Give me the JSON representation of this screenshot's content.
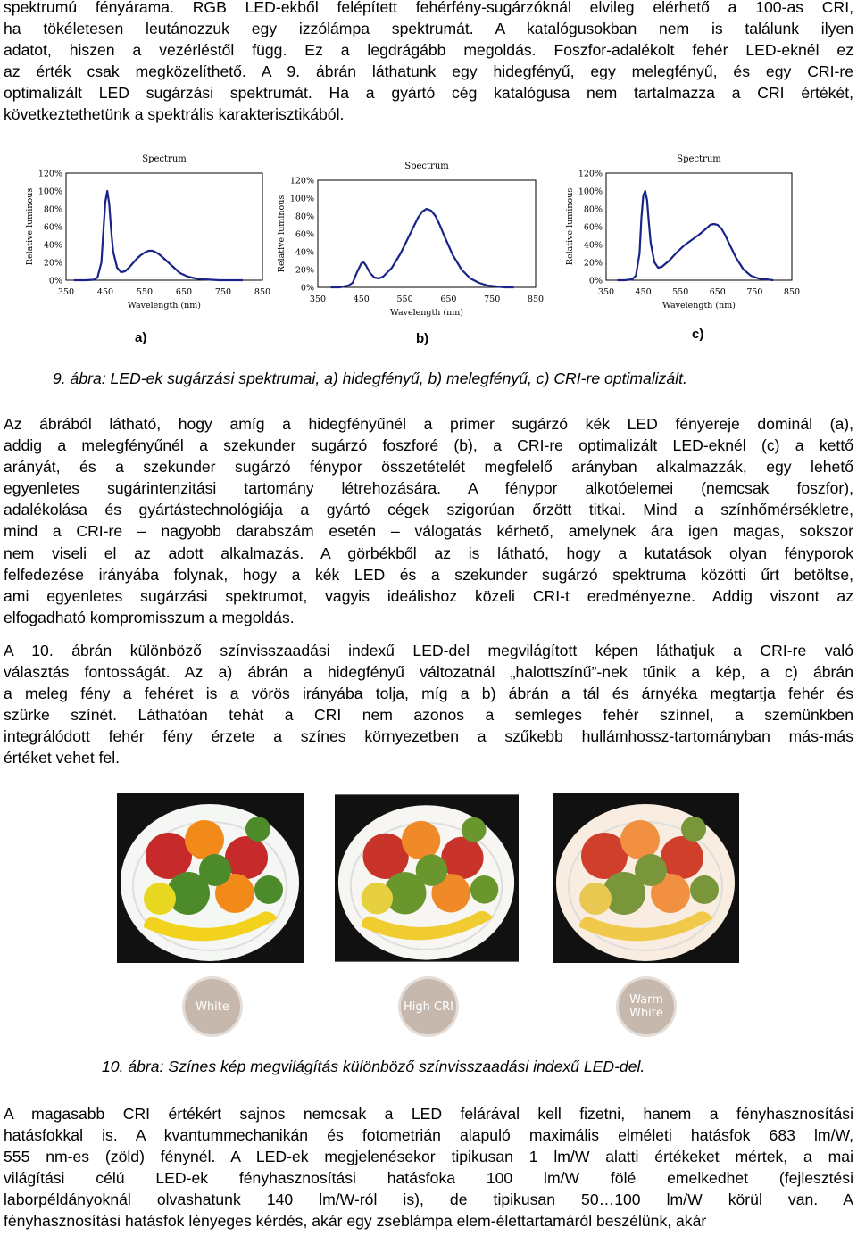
{
  "para1": [
    "spektrumú fényárama. RGB LED-ekből felépített fehérfény-sugárzóknál elvileg elérhető a 100-as CRI,",
    "ha tökéletesen leutánozzuk egy izzólámpa spektrumát. A katalógusokban nem is találunk ilyen",
    "adatot, hiszen a vezérléstől függ. Ez a legdrágább megoldás. Foszfor-adalékolt fehér LED-eknél ez",
    "az érték csak megközelíthető. A 9. ábrán láthatunk egy hidegfényű, egy melegfényű, és egy CRI-re",
    "optimalizált LED sugárzási spektrumát. Ha a gyártó cég katalógusa nem tartalmazza a CRI értékét,",
    "következtethetünk a spektrális karakterisztikából."
  ],
  "figure9": {
    "caption": "9. ábra: LED-ek sugárzási spektrumai, a) hidegfényű, b) melegfényű, c) CRI-re optimalizált.",
    "chart_data": [
      {
        "type": "line",
        "label": "a)",
        "title": "Spectrum",
        "xlabel": "Wavelength (nm)",
        "ylabel": "Relative luminous",
        "xlim": [
          350,
          850
        ],
        "ylim": [
          0,
          120
        ],
        "x_ticks": [
          "350",
          "450",
          "550",
          "650",
          "750",
          "850"
        ],
        "y_ticks": [
          "0%",
          "20%",
          "40%",
          "60%",
          "80%",
          "100%",
          "120%"
        ],
        "series": [
          {
            "x": [
              370,
              400,
              420,
              430,
              440,
              445,
              450,
              455,
              460,
              465,
              470,
              480,
              490,
              500,
              510,
              520,
              530,
              540,
              550,
              560,
              570,
              580,
              590,
              600,
              620,
              640,
              660,
              680,
              700,
              720,
              740,
              760,
              780,
              800
            ],
            "y": [
              0,
              0,
              0.5,
              3,
              20,
              55,
              88,
              100,
              85,
              55,
              32,
              14,
              9,
              10,
              14,
              19,
              24,
              28,
              31,
              33,
              33,
              31,
              28,
              24,
              16,
              8,
              4,
              2,
              1,
              0.5,
              0,
              0,
              0,
              0
            ]
          }
        ]
      },
      {
        "type": "line",
        "label": "b)",
        "title": "Spectrum",
        "xlabel": "Wavelength (nm)",
        "ylabel": "Relative luminous",
        "xlim": [
          350,
          850
        ],
        "ylim": [
          0,
          120
        ],
        "x_ticks": [
          "350",
          "450",
          "550",
          "650",
          "750",
          "850"
        ],
        "y_ticks": [
          "0%",
          "20%",
          "40%",
          "60%",
          "80%",
          "100%",
          "120%"
        ],
        "series": [
          {
            "x": [
              380,
              400,
              410,
              420,
              430,
              440,
              450,
              455,
              460,
              470,
              480,
              490,
              500,
              520,
              540,
              560,
              580,
              590,
              600,
              610,
              620,
              630,
              640,
              660,
              680,
              700,
              720,
              740,
              760,
              780,
              800
            ],
            "y": [
              0,
              0,
              1,
              2,
              5,
              17,
              27,
              28,
              25,
              16,
              11,
              10,
              12,
              22,
              38,
              58,
              78,
              85,
              88,
              86,
              80,
              70,
              58,
              36,
              20,
              10,
              5,
              2,
              1,
              0,
              0
            ]
          }
        ]
      },
      {
        "type": "line",
        "label": "c)",
        "title": "Spectrum",
        "xlabel": "Wavelength (nm)",
        "ylabel": "Relative luminous",
        "xlim": [
          350,
          850
        ],
        "ylim": [
          0,
          120
        ],
        "x_ticks": [
          "350",
          "450",
          "550",
          "650",
          "750",
          "850"
        ],
        "y_ticks": [
          "0%",
          "20%",
          "40%",
          "60%",
          "80%",
          "100%",
          "120%"
        ],
        "series": [
          {
            "x": [
              380,
              400,
              420,
              430,
              440,
              445,
              450,
              455,
              460,
              465,
              470,
              480,
              490,
              500,
              520,
              540,
              560,
              580,
              600,
              620,
              630,
              640,
              650,
              660,
              670,
              680,
              700,
              720,
              740,
              760,
              780,
              800
            ],
            "y": [
              0,
              0,
              1,
              5,
              30,
              70,
              95,
              100,
              90,
              65,
              42,
              20,
              14,
              15,
              22,
              31,
              39,
              45,
              51,
              58,
              62,
              63,
              62,
              58,
              51,
              42,
              25,
              12,
              5,
              2,
              1,
              0
            ]
          }
        ]
      }
    ],
    "sublabels": [
      "a)",
      "b)",
      "c)"
    ]
  },
  "para2": [
    "Az ábrából látható, hogy amíg a hidegfényűnél a primer sugárzó kék LED fényereje dominál (a),",
    "addig a melegfényűnél a szekunder sugárzó foszforé (b), a CRI-re optimalizált LED-eknél (c) a kettő",
    "arányát, és a szekunder sugárzó fénypor összetételét megfelelő arányban alkalmazzák, egy lehető",
    "egyenletes sugárintenzitási tartomány létrehozására. A fénypor alkotóelemei (nemcsak foszfor),",
    "adalékolása és gyártástechnológiája a gyártó cégek szigorúan őrzött titkai. Mind a színhőmérsékletre,",
    "mind a CRI-re – nagyobb darabszám esetén – válogatás kérhető, amelynek ára igen magas, sokszor",
    "nem viseli el az adott alkalmazás. A görbékből az is látható, hogy a kutatások olyan fényporok",
    "felfedezése irányába folynak, hogy a kék LED és a szekunder sugárzó spektruma közötti űrt betöltse,",
    "ami egyenletes sugárzási spektrumot, vagyis ideálishoz közeli CRI-t eredményezne. Addig viszont az",
    "elfogadható kompromisszum a megoldás."
  ],
  "para3": [
    "A 10. ábrán különböző színvisszaadási indexű LED-del megvilágított képen láthatjuk a CRI-re való",
    "választás fontosságát. Az a) ábrán a hidegfényű változatnál „halottszínű”-nek tűnik a kép, a c) ábrán",
    "a meleg fény a fehéret is a vörös irányába tolja, míg a b) ábrán a tál és árnyéka megtartja fehér és",
    "szürke színét. Láthatóan tehát a CRI nem azonos a semleges fehér színnel, a szemünkben",
    "integrálódott fehér fény érzete a színes környezetben a szűkebb hullámhossz-tartományban más-más",
    "értéket vehet fel."
  ],
  "figure10": {
    "caption": "10. ábra: Színes kép megvilágítás különböző színvisszaadási indexű LED-del.",
    "photos": [
      {
        "badge_lines": [
          "White"
        ],
        "bowl": "#f4f7f3",
        "colors": {
          "apple": "#c62a2a",
          "green": "#4d8a2a",
          "banana": "#f2d21c",
          "orange": "#f28a1a",
          "lemon": "#e8d822"
        }
      },
      {
        "badge_lines": [
          "High CRI"
        ],
        "bowl": "#f8f6f2",
        "colors": {
          "apple": "#c8342a",
          "green": "#6a962e",
          "banana": "#f0cc30",
          "orange": "#f08a28",
          "lemon": "#e6d040"
        }
      },
      {
        "badge_lines": [
          "Warm",
          "White"
        ],
        "bowl": "#f8ede0",
        "colors": {
          "apple": "#cf3f2c",
          "green": "#7a963a",
          "banana": "#f1c94a",
          "orange": "#f09040",
          "lemon": "#e8c850"
        }
      }
    ]
  },
  "para4": [
    "A magasabb CRI értékért sajnos nemcsak a LED felárával kell fizetni, hanem a fényhasznosítási",
    "hatásfokkal is. A kvantummechanikán és fotometrián alapuló maximális elméleti hatásfok 683 lm/W,",
    "555 nm-es (zöld) fénynél. A LED-ek megjelenésekor tipikusan 1 lm/W alatti értékeket mértek, a mai",
    "világítási célú LED-ek fényhasznosítási hatásfoka 100 lm/W fölé emelkedhet (fejlesztési",
    "laborpéldányoknál olvashatunk 140 lm/W-ról is), de tipikusan 50…100 lm/W körül van. A",
    "fényhasznosítási hatásfok lényeges kérdés, akár egy zseblámpa elem-élettartamáról beszélünk, akár"
  ]
}
